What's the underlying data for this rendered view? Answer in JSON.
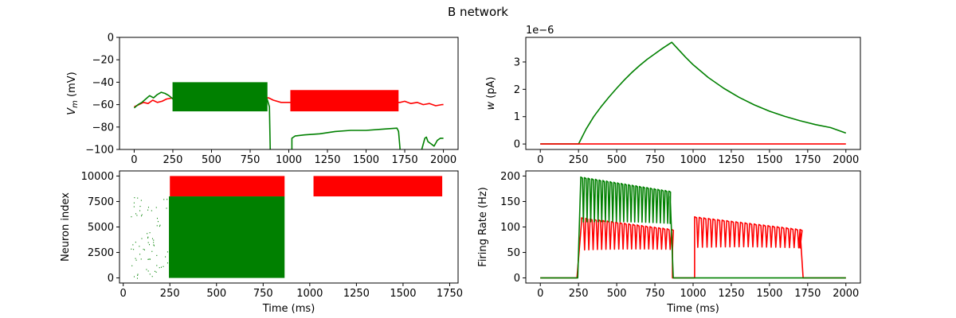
{
  "figure": {
    "title": "B network"
  },
  "chart_data": [
    {
      "id": "vm",
      "type": "line",
      "ylabel_main": "V",
      "ylabel_sub": "m",
      "ylabel_unit": "(mV)",
      "xlabel": "",
      "xlim": [
        -95,
        2095
      ],
      "ylim": [
        -100,
        0
      ],
      "xticks": [
        0,
        250,
        500,
        750,
        1000,
        1250,
        1500,
        1750,
        2000
      ],
      "yticks": [
        0,
        -20,
        -40,
        -60,
        -80,
        -100
      ],
      "colors": {
        "red": "#ff0000",
        "green": "#008000"
      },
      "series": [
        {
          "color": "#ff0000",
          "points": [
            [
              0,
              -62
            ],
            [
              30,
              -60
            ],
            [
              60,
              -58
            ],
            [
              90,
              -59
            ],
            [
              120,
              -56
            ],
            [
              150,
              -58
            ],
            [
              180,
              -57
            ],
            [
              210,
              -55
            ],
            [
              250,
              -54
            ],
            [
              300,
              -55
            ],
            [
              400,
              -55
            ],
            [
              500,
              -55
            ],
            [
              600,
              -55
            ],
            [
              700,
              -54
            ],
            [
              800,
              -54
            ],
            [
              870,
              -54
            ],
            [
              900,
              -56
            ],
            [
              950,
              -58
            ],
            [
              1010,
              -58
            ],
            [
              1700,
              -58
            ],
            [
              1720,
              -58
            ],
            [
              1750,
              -57
            ],
            [
              1790,
              -59
            ],
            [
              1830,
              -58
            ],
            [
              1870,
              -60
            ],
            [
              1910,
              -59
            ],
            [
              1950,
              -61
            ],
            [
              1990,
              -60
            ],
            [
              2000,
              -60
            ]
          ],
          "bands": [
            [
              1010,
              1710,
              -66,
              -47
            ]
          ]
        },
        {
          "color": "#008000",
          "points": [
            [
              0,
              -63
            ],
            [
              25,
              -60
            ],
            [
              50,
              -58
            ],
            [
              75,
              -55
            ],
            [
              100,
              -52
            ],
            [
              125,
              -54
            ],
            [
              150,
              -51
            ],
            [
              175,
              -49
            ],
            [
              200,
              -50
            ],
            [
              225,
              -52
            ],
            [
              250,
              -55
            ],
            [
              860,
              -55
            ],
            [
              875,
              -62
            ],
            [
              880,
              -100
            ]
          ],
          "bands": [
            [
              248,
              862,
              -66,
              -40
            ]
          ],
          "segments": [
            [
              [
                1020,
                -100
              ],
              [
                1020,
                -90
              ],
              [
                1040,
                -88
              ],
              [
                1100,
                -87
              ],
              [
                1200,
                -86
              ],
              [
                1300,
                -84
              ],
              [
                1400,
                -83
              ],
              [
                1500,
                -83
              ],
              [
                1600,
                -82
              ],
              [
                1700,
                -81
              ],
              [
                1710,
                -84
              ],
              [
                1720,
                -100
              ]
            ],
            [
              [
                1860,
                -100
              ],
              [
                1880,
                -90
              ],
              [
                1890,
                -89
              ],
              [
                1900,
                -93
              ],
              [
                1920,
                -95
              ],
              [
                1940,
                -97
              ],
              [
                1960,
                -92
              ],
              [
                1980,
                -90
              ],
              [
                2000,
                -90
              ]
            ]
          ]
        }
      ]
    },
    {
      "id": "w",
      "type": "line",
      "ylabel_main": "w",
      "ylabel_unit": "(pA)",
      "offset_text": "1e−6",
      "xlabel": "",
      "xlim": [
        -95,
        2095
      ],
      "ylim": [
        -0.2,
        3.9
      ],
      "xticks": [
        0,
        250,
        500,
        750,
        1000,
        1250,
        1500,
        1750,
        2000
      ],
      "yticks": [
        0,
        1,
        2,
        3
      ],
      "series": [
        {
          "color": "#ff0000",
          "points": [
            [
              0,
              0
            ],
            [
              2000,
              0
            ]
          ]
        },
        {
          "color": "#008000",
          "points": [
            [
              0,
              0
            ],
            [
              250,
              0
            ],
            [
              300,
              0.55
            ],
            [
              350,
              1.0
            ],
            [
              400,
              1.38
            ],
            [
              450,
              1.72
            ],
            [
              500,
              2.04
            ],
            [
              550,
              2.34
            ],
            [
              600,
              2.62
            ],
            [
              650,
              2.87
            ],
            [
              700,
              3.1
            ],
            [
              750,
              3.3
            ],
            [
              800,
              3.5
            ],
            [
              860,
              3.72
            ],
            [
              900,
              3.48
            ],
            [
              950,
              3.18
            ],
            [
              1000,
              2.9
            ],
            [
              1100,
              2.43
            ],
            [
              1200,
              2.04
            ],
            [
              1300,
              1.71
            ],
            [
              1400,
              1.43
            ],
            [
              1500,
              1.2
            ],
            [
              1600,
              1.01
            ],
            [
              1700,
              0.85
            ],
            [
              1800,
              0.71
            ],
            [
              1900,
              0.6
            ],
            [
              2000,
              0.4
            ]
          ]
        }
      ]
    },
    {
      "id": "raster",
      "type": "scatter",
      "ylabel": "Neuron index",
      "xlabel": "Time (ms)",
      "xlim": [
        -20,
        1795
      ],
      "ylim": [
        -500,
        10500
      ],
      "xticks": [
        0,
        250,
        500,
        750,
        1000,
        1250,
        1500,
        1750
      ],
      "yticks": [
        0,
        2500,
        5000,
        7500,
        10000
      ],
      "blocks": [
        {
          "color": "#ff0000",
          "x": [
            250,
            865
          ],
          "y": [
            8000,
            10000
          ]
        },
        {
          "color": "#ff0000",
          "x": [
            1020,
            1710
          ],
          "y": [
            8000,
            10000
          ]
        },
        {
          "color": "#008000",
          "x": [
            245,
            865
          ],
          "y": [
            0,
            8000
          ]
        }
      ],
      "sparse_spikes_color": "#008000",
      "sparse_spikes_range": [
        40,
        245
      ]
    },
    {
      "id": "rate",
      "type": "line",
      "ylabel": "Firing Rate (Hz)",
      "xlabel": "Time (ms)",
      "xlim": [
        -95,
        2095
      ],
      "ylim": [
        -10,
        210
      ],
      "xticks": [
        0,
        250,
        500,
        750,
        1000,
        1250,
        1500,
        1750,
        2000
      ],
      "yticks": [
        0,
        50,
        100,
        150,
        200
      ],
      "series": [
        {
          "color": "#ff0000",
          "segments": [
            {
              "start": 0,
              "end": 240,
              "level": 0
            },
            {
              "start": 240,
              "end": 270,
              "ramp": [
                0,
                110
              ]
            },
            {
              "start": 270,
              "end": 865,
              "osc_hi": 118,
              "osc_lo": 55,
              "period": 28,
              "decay_hi": 95
            },
            {
              "start": 865,
              "end": 1010,
              "level": 0
            },
            {
              "start": 1010,
              "end": 1700,
              "osc_hi": 120,
              "osc_lo": 60,
              "period": 30,
              "decay_hi": 95
            },
            {
              "start": 1700,
              "end": 1720,
              "ramp": [
                95,
                0
              ]
            },
            {
              "start": 1720,
              "end": 2000,
              "level": 0
            }
          ]
        },
        {
          "color": "#008000",
          "segments": [
            {
              "start": 0,
              "end": 245,
              "level": 0
            },
            {
              "start": 245,
              "end": 265,
              "ramp": [
                0,
                195
              ]
            },
            {
              "start": 265,
              "end": 850,
              "osc_hi": 198,
              "osc_lo": 110,
              "period": 24,
              "decay_hi": 170
            },
            {
              "start": 850,
              "end": 870,
              "ramp": [
                160,
                0
              ]
            },
            {
              "start": 870,
              "end": 2000,
              "level": 0
            }
          ]
        }
      ]
    }
  ]
}
